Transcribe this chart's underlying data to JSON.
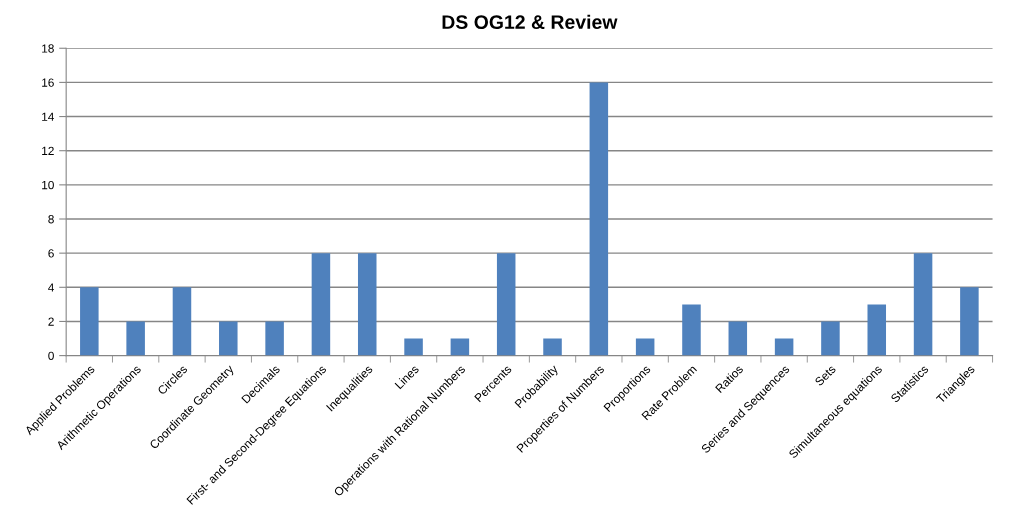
{
  "chart_data": {
    "type": "bar",
    "title": "DS OG12 & Review",
    "categories": [
      "Applied Problems",
      "Arithmetic Operations",
      "Circles",
      "Coordinate Geometry",
      "Decimals",
      "First- and Second-Degree Equations",
      "Inequalities",
      "Lines",
      "Operations with Rational Numbers",
      "Percents",
      "Probability",
      "Properties of Numbers",
      "Proportions",
      "Rate Problem",
      "Ratios",
      "Series and Sequences",
      "Sets",
      "Simultaneous equations",
      "Statistics",
      "Triangles"
    ],
    "values": [
      4,
      2,
      4,
      2,
      2,
      6,
      6,
      1,
      1,
      6,
      1,
      16,
      1,
      3,
      2,
      1,
      2,
      3,
      6,
      4
    ],
    "color": "#4f81bd",
    "ylim": [
      0,
      18
    ],
    "yticks": [
      0,
      2,
      4,
      6,
      8,
      10,
      12,
      14,
      16,
      18
    ],
    "grid": "y",
    "legend": false
  }
}
